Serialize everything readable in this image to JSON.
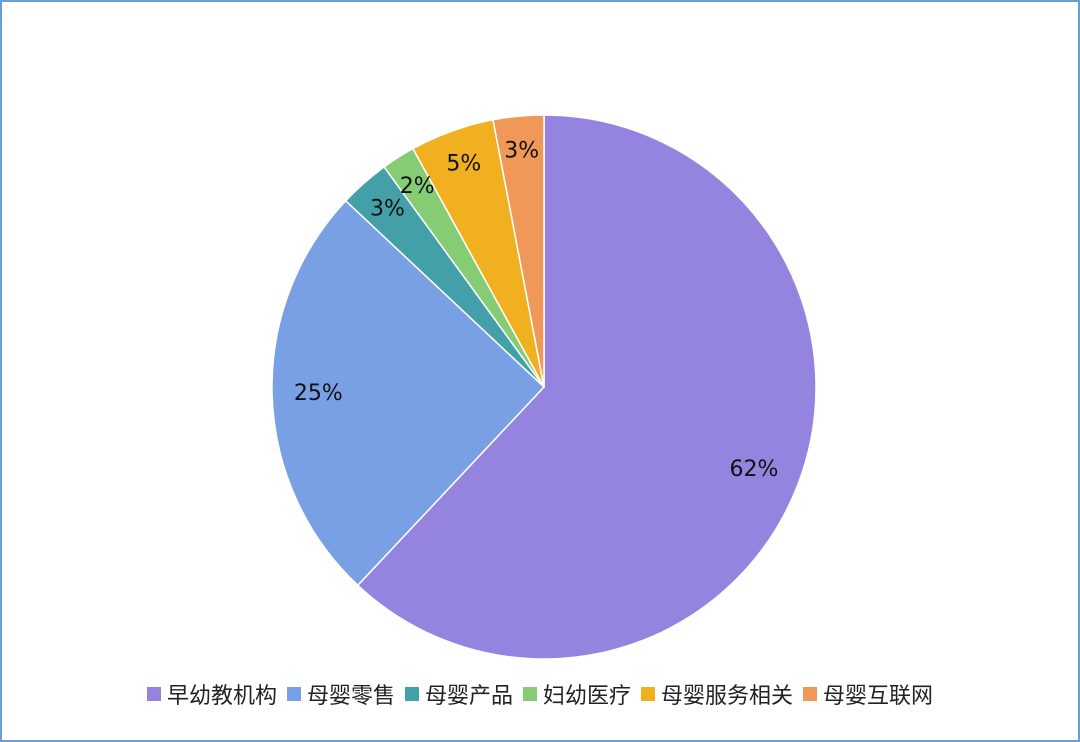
{
  "chart_data": {
    "type": "pie",
    "categories": [
      "早幼教机构",
      "母婴零售",
      "母婴产品",
      "妇幼医疗",
      "母婴服务相关",
      "母婴互联网"
    ],
    "values": [
      62,
      25,
      3,
      2,
      5,
      3
    ],
    "value_labels": [
      "62%",
      "25%",
      "3%",
      "2%",
      "5%",
      "3%"
    ],
    "colors": [
      "#9484e0",
      "#79a0e4",
      "#44a0a8",
      "#86cc74",
      "#f0b020",
      "#f09858"
    ],
    "legend": "bottom"
  }
}
